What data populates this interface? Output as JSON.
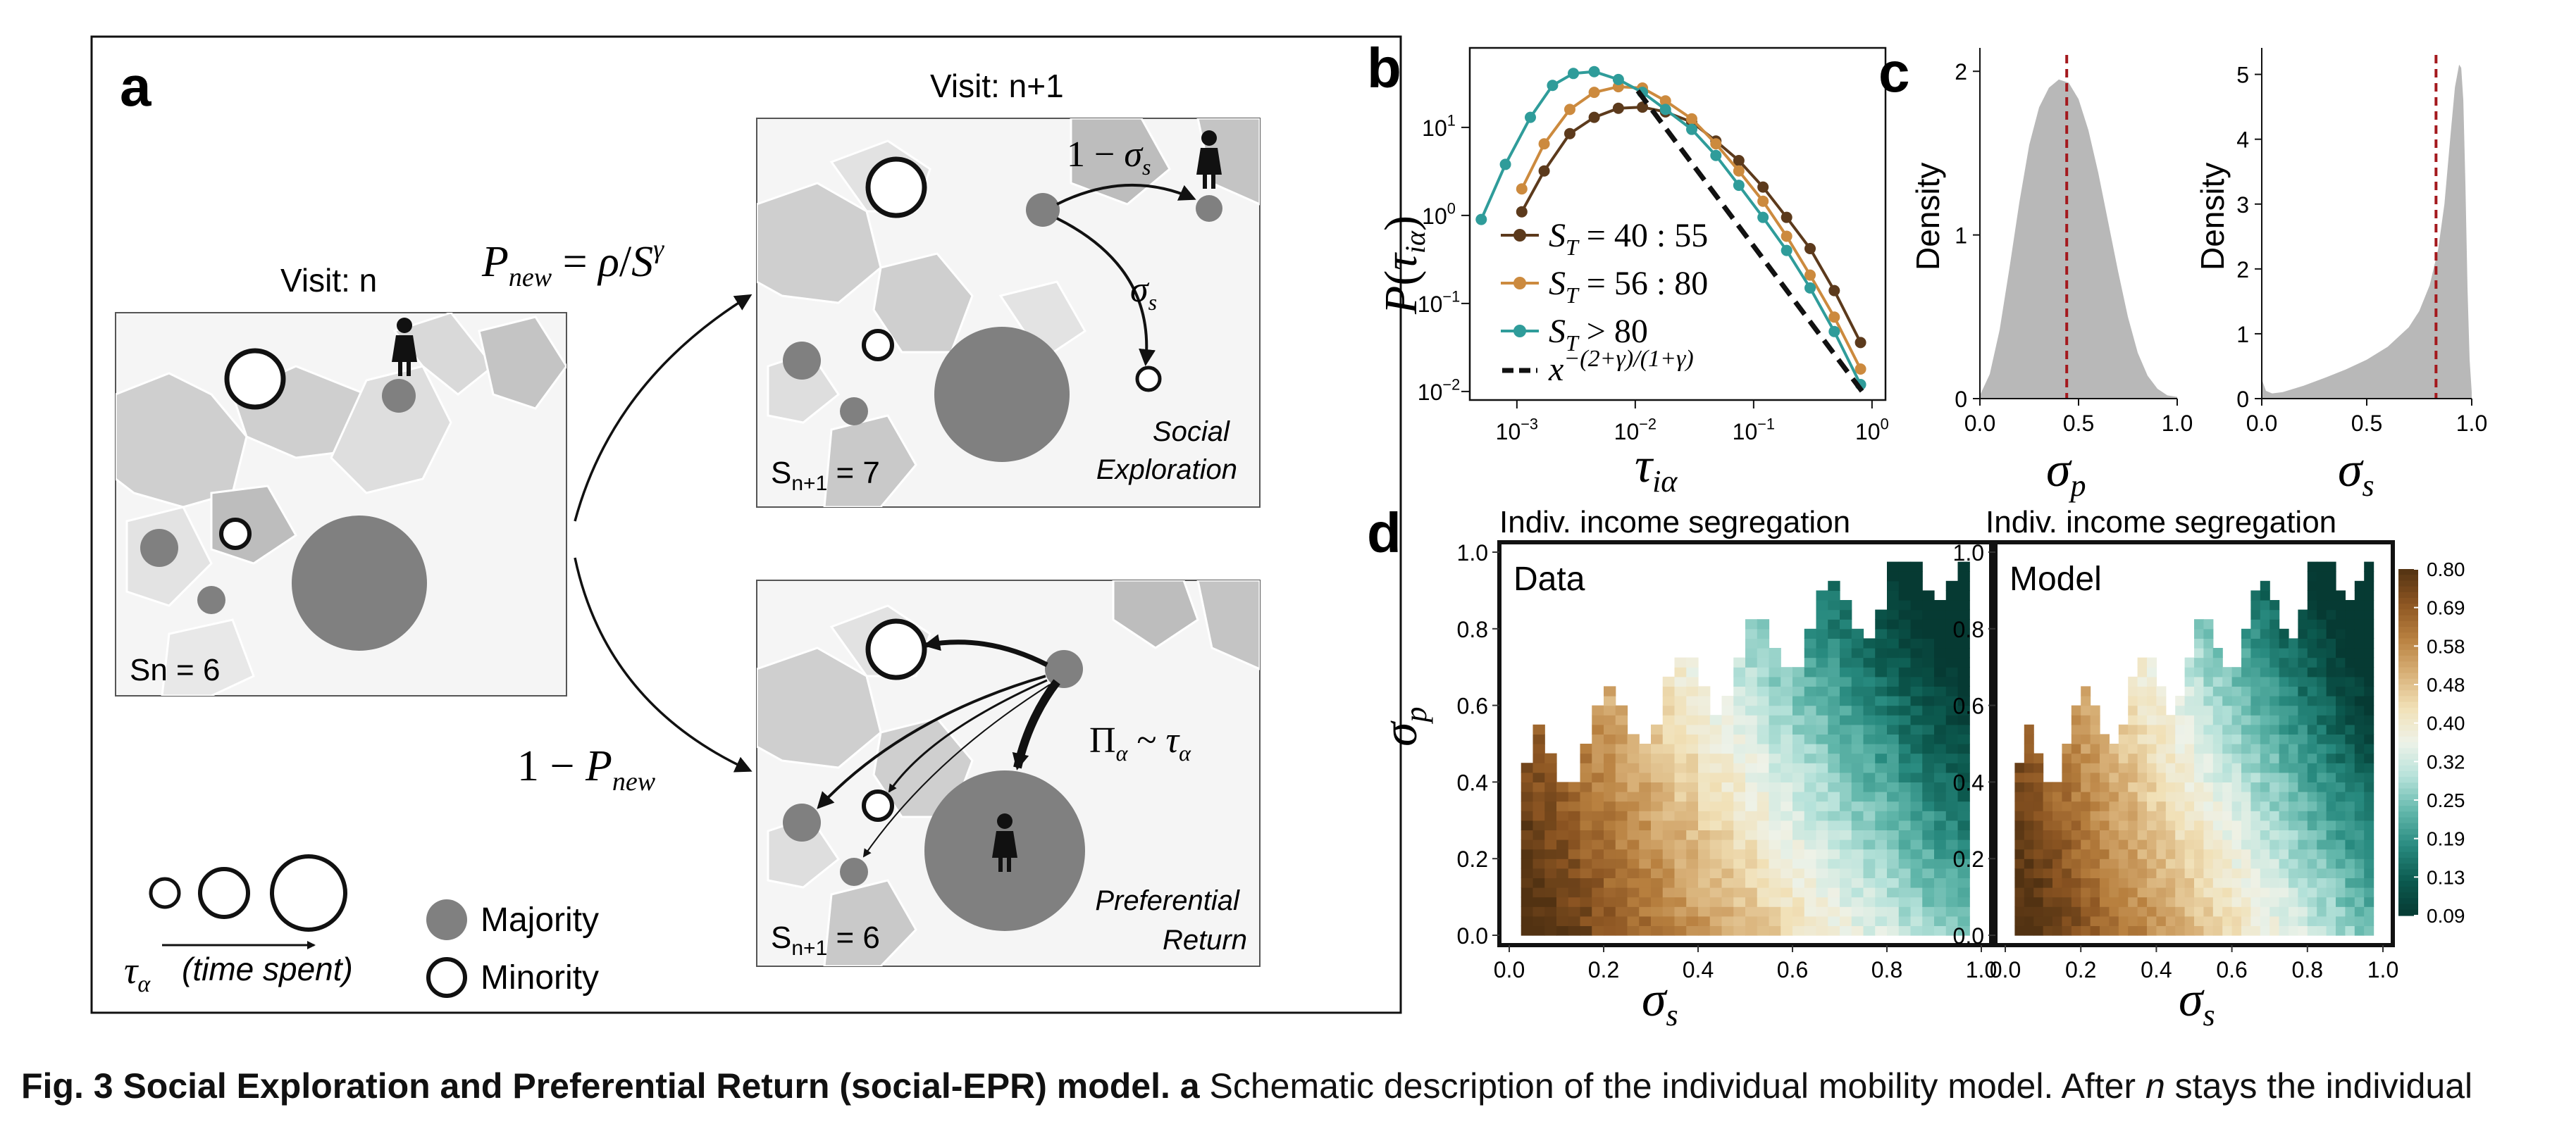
{
  "panel_letters": {
    "a": "a",
    "b": "b",
    "c": "c",
    "d": "d"
  },
  "panel_a": {
    "visit_n_label": "Visit: n",
    "visit_n1_label": "Visit: n+1",
    "p_new_formula": "P_new = ρ/S^γ",
    "one_minus_p_new": "1 − P_new",
    "one_minus_sigma_s": "1 − σ_s",
    "sigma_s": "σ_s",
    "pi_formula": "Π_α ~ τ_α",
    "s_n": "Sn = 6",
    "s_n1_top": "Sn+1 = 7",
    "s_n1_bottom": "Sn+1 = 6",
    "social_exploration": [
      "Social",
      "Exploration"
    ],
    "preferential_return": [
      "Preferential",
      "Return"
    ],
    "legend_majority": "Majority",
    "legend_minority": "Minority",
    "legend_tau": "τ_α",
    "legend_time": "(time spent)"
  },
  "chart_data": [
    {
      "id": "b",
      "type": "line",
      "xlabel": "τ_iα",
      "ylabel": "P(τ_iα)",
      "xscale": "log",
      "yscale": "log",
      "xlim": [
        0.0004,
        1.3
      ],
      "ylim": [
        0.008,
        80
      ],
      "xticks": [
        "10^-3",
        "10^-2",
        "10^-1",
        "10^0"
      ],
      "yticks": [
        "10^-2",
        "10^-1",
        "10^0",
        "10^1"
      ],
      "series": [
        {
          "name": "S_T = 40 : 55",
          "color": "#5c3a1c",
          "x": [
            0.0011,
            0.0017,
            0.0028,
            0.0045,
            0.0072,
            0.0115,
            0.018,
            0.03,
            0.048,
            0.075,
            0.12,
            0.19,
            0.3,
            0.48,
            0.8
          ],
          "y": [
            1.1,
            3.2,
            8.5,
            13,
            16.5,
            17,
            15,
            11.5,
            7,
            4.2,
            2.1,
            0.95,
            0.42,
            0.14,
            0.036
          ]
        },
        {
          "name": "S_T = 56 : 80",
          "color": "#cc8a3e",
          "x": [
            0.0011,
            0.0017,
            0.0028,
            0.0045,
            0.0072,
            0.0115,
            0.018,
            0.03,
            0.048,
            0.075,
            0.12,
            0.19,
            0.3,
            0.48,
            0.8
          ],
          "y": [
            2.0,
            6.5,
            16,
            25,
            29,
            28,
            20,
            12.5,
            6.5,
            3.2,
            1.45,
            0.58,
            0.21,
            0.07,
            0.018
          ]
        },
        {
          "name": "S_T > 80",
          "color": "#2f9c9a",
          "x": [
            0.0005,
            0.0008,
            0.0013,
            0.002,
            0.003,
            0.0045,
            0.0072,
            0.0115,
            0.018,
            0.03,
            0.048,
            0.075,
            0.12,
            0.19,
            0.3,
            0.48,
            0.8
          ],
          "y": [
            0.9,
            3.8,
            13,
            30,
            41,
            43,
            35,
            25,
            16,
            9.5,
            4.8,
            2.2,
            0.95,
            0.4,
            0.15,
            0.048,
            0.012
          ]
        },
        {
          "name": "x^−(2+γ)/(1+γ)",
          "color": "#111111",
          "dashed": true,
          "x": [
            0.0105,
            0.85
          ],
          "y": [
            26,
            0.0095
          ]
        }
      ]
    },
    {
      "id": "c-left",
      "type": "area",
      "xlabel": "σ_p",
      "ylabel": "Density",
      "xlim": [
        0,
        1
      ],
      "ylim": [
        0,
        2.1
      ],
      "xticks": [
        "0.0",
        "0.5",
        "1.0"
      ],
      "yticks": [
        "0",
        "1",
        "2"
      ],
      "vline": 0.44,
      "x": [
        0.0,
        0.05,
        0.1,
        0.15,
        0.2,
        0.25,
        0.3,
        0.35,
        0.4,
        0.45,
        0.5,
        0.55,
        0.6,
        0.65,
        0.7,
        0.75,
        0.8,
        0.85,
        0.9,
        0.95,
        1.0
      ],
      "y": [
        0.02,
        0.15,
        0.42,
        0.8,
        1.2,
        1.55,
        1.78,
        1.9,
        1.95,
        1.93,
        1.83,
        1.64,
        1.38,
        1.08,
        0.78,
        0.5,
        0.28,
        0.14,
        0.06,
        0.02,
        0.01
      ]
    },
    {
      "id": "c-right",
      "type": "area",
      "xlabel": "σ_s",
      "ylabel": "Density",
      "xlim": [
        0,
        1
      ],
      "ylim": [
        0,
        5.3
      ],
      "xticks": [
        "0.0",
        "0.5",
        "1.0"
      ],
      "yticks": [
        "0",
        "1",
        "2",
        "3",
        "4",
        "5"
      ],
      "vline": 0.83,
      "x": [
        0.0,
        0.02,
        0.05,
        0.1,
        0.2,
        0.3,
        0.4,
        0.5,
        0.6,
        0.7,
        0.75,
        0.8,
        0.84,
        0.87,
        0.9,
        0.92,
        0.94,
        0.95,
        0.96,
        0.97,
        0.98,
        0.99,
        1.0
      ],
      "y": [
        0.3,
        0.12,
        0.08,
        0.1,
        0.2,
        0.32,
        0.45,
        0.6,
        0.8,
        1.1,
        1.35,
        1.75,
        2.3,
        3.0,
        4.1,
        4.8,
        5.15,
        5.1,
        4.6,
        3.3,
        1.7,
        0.6,
        0.1
      ]
    },
    {
      "id": "d",
      "type": "heatmap",
      "title": "Indiv. income segregation",
      "panels": [
        "Data",
        "Model"
      ],
      "xlabel": "σ_s",
      "ylabel": "σ_p",
      "xlim": [
        0,
        1
      ],
      "ylim": [
        0,
        1
      ],
      "xticks": [
        "0.0",
        "0.2",
        "0.4",
        "0.6",
        "0.8",
        "1.0"
      ],
      "yticks": [
        "0.0",
        "0.2",
        "0.4",
        "0.6",
        "0.8",
        "1.0"
      ],
      "colorbar_ticks": [
        "0.80",
        "0.69",
        "0.58",
        "0.48",
        "0.40",
        "0.32",
        "0.25",
        "0.19",
        "0.13",
        "0.09"
      ],
      "colors": [
        "#523212",
        "#8c5522",
        "#b8803f",
        "#d8b077",
        "#f1e0b6",
        "#eef2e8",
        "#b6e2da",
        "#62b7ab",
        "#288a7f",
        "#0c5a4f",
        "#063a33"
      ],
      "value_formula": "seg = 0.85 - 0.55*sigma_s - 0.18*sigma_p - 0.2*sigma_s*sigma_p",
      "value_range": [
        0.09,
        0.8
      ]
    }
  ],
  "caption": {
    "bold": "Fig. 3 Social Exploration and Preferential Return (social-EPR) model.",
    "bold_letter": "a",
    "text": "Schematic description of the individual mobility model. After",
    "n": "n",
    "tail": "stays the individual"
  }
}
